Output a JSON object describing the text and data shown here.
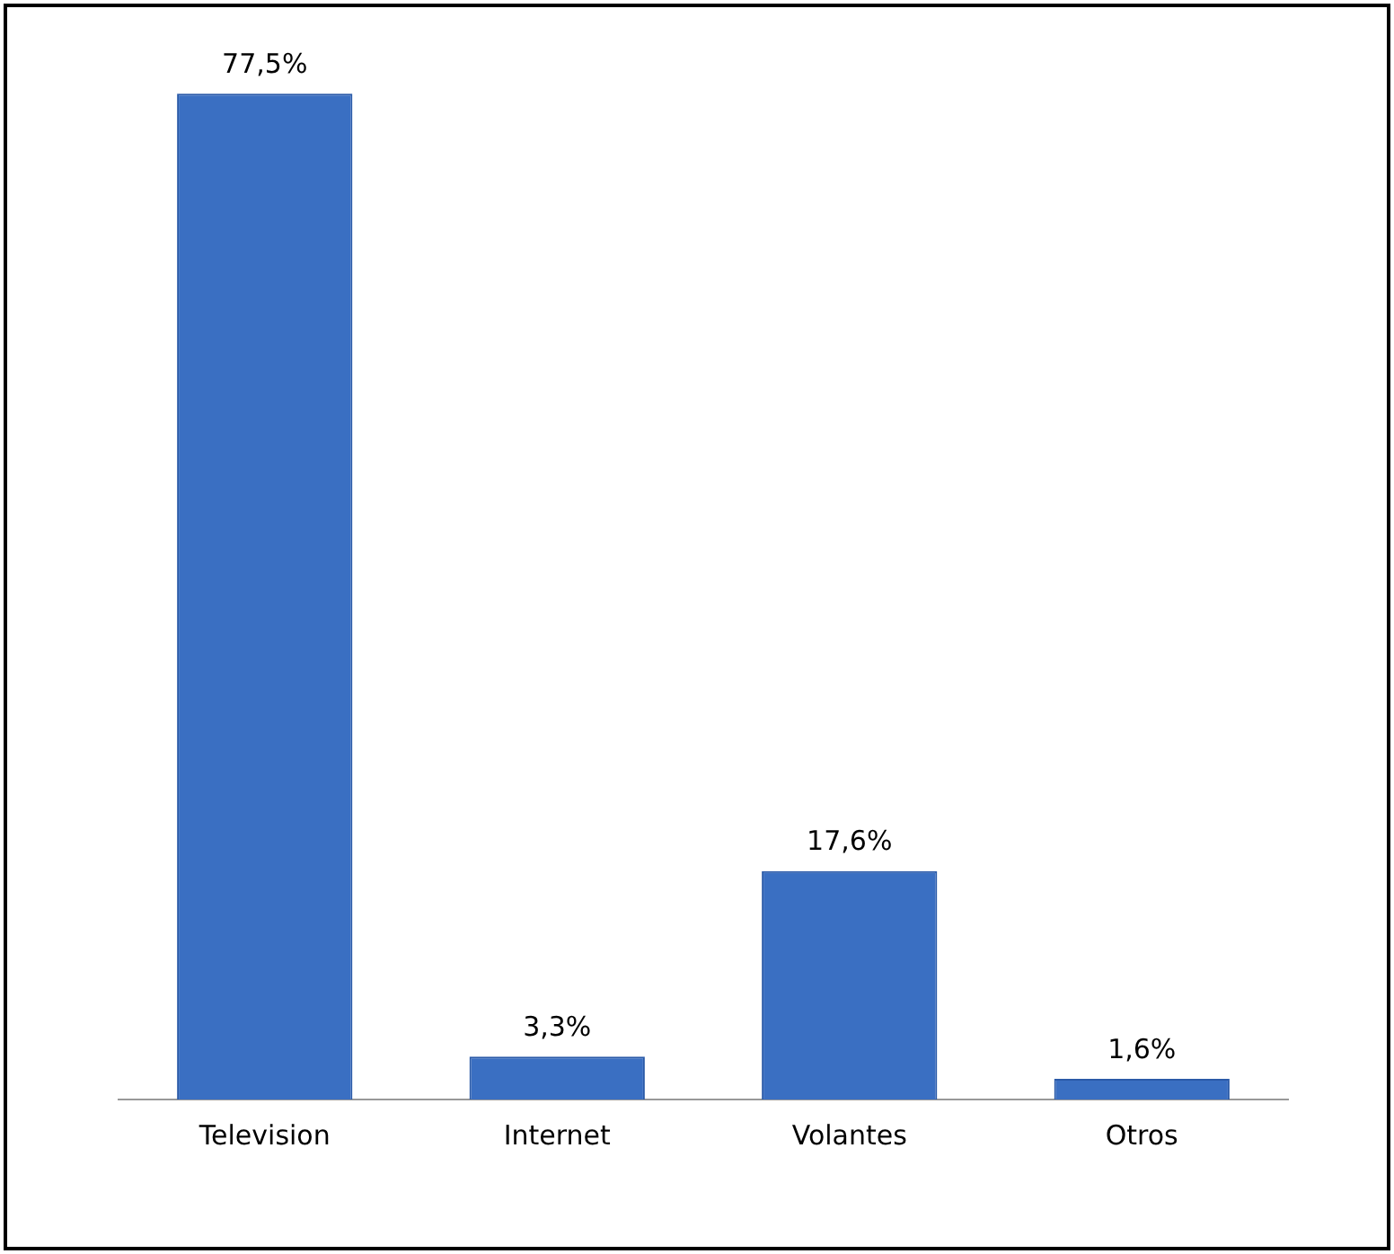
{
  "chart_data": {
    "type": "bar",
    "categories": [
      "Television",
      "Internet",
      "Volantes",
      "Otros"
    ],
    "values": [
      77.5,
      3.3,
      17.6,
      1.6
    ],
    "value_labels": [
      "77,5%",
      "3,3%",
      "17,6%",
      "1,6%"
    ],
    "color": "#3a6fc2",
    "grid": false,
    "legend": false
  }
}
